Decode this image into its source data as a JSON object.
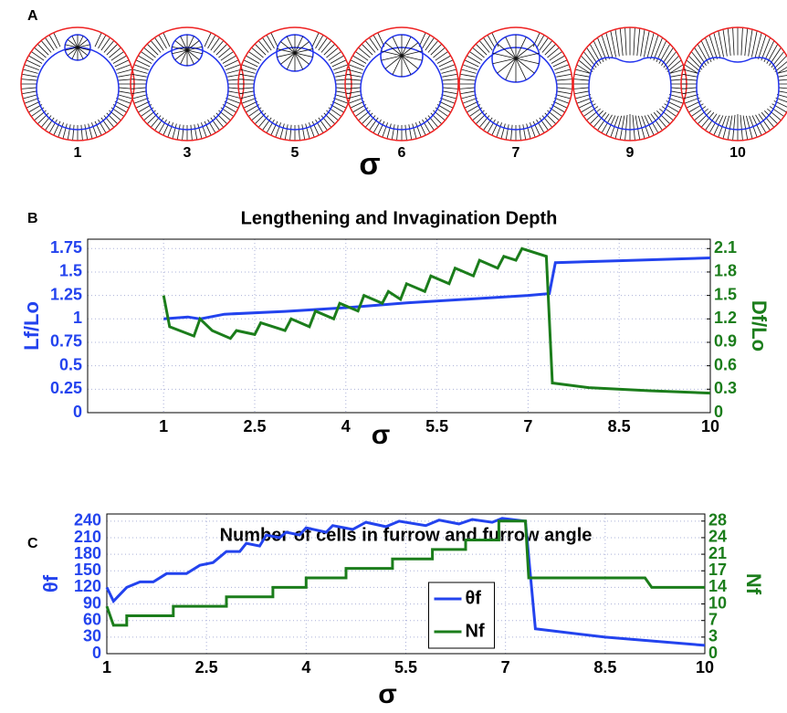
{
  "figure_a": {
    "panel_label": "A",
    "sigma_labels": [
      "1",
      "3",
      "5",
      "6",
      "7",
      "9",
      "10"
    ],
    "xlabel": "σ"
  },
  "chart_data": [
    {
      "type": "line",
      "panel_label": "B",
      "title": "Lengthening and Invagination Depth",
      "xlabel": "σ",
      "ylabel": "Lf/Lo",
      "y2label": "Df/Lo",
      "xlim": [
        -0.25,
        10
      ],
      "xticks": [
        1,
        2.5,
        4,
        5.5,
        7,
        8.5,
        10
      ],
      "ylim": [
        0,
        1.85
      ],
      "yticks": [
        0,
        0.25,
        0.5,
        0.75,
        1,
        1.25,
        1.5,
        1.75
      ],
      "y2lim": [
        0,
        2.22
      ],
      "y2ticks": [
        0,
        0.3,
        0.6,
        0.9,
        1.2,
        1.5,
        1.8,
        2.1
      ],
      "grid": true,
      "series": [
        {
          "name": "Lf/Lo",
          "color": "#2343ee",
          "x": [
            1,
            1.4,
            1.6,
            2,
            3,
            4,
            5,
            6,
            7,
            7.35,
            7.45,
            8.5,
            10
          ],
          "values": [
            1,
            1.02,
            1,
            1.05,
            1.08,
            1.12,
            1.17,
            1.21,
            1.25,
            1.27,
            1.6,
            1.62,
            1.65
          ]
        },
        {
          "name": "Df/Lo",
          "color": "#1b7d1b",
          "axis": "y2",
          "x": [
            1,
            1.1,
            1.5,
            1.6,
            1.8,
            2.1,
            2.2,
            2.5,
            2.6,
            3,
            3.1,
            3.4,
            3.5,
            3.8,
            3.9,
            4.2,
            4.3,
            4.6,
            4.7,
            4.9,
            5,
            5.3,
            5.4,
            5.7,
            5.8,
            6.1,
            6.2,
            6.5,
            6.6,
            6.8,
            6.9,
            7.3,
            7.4,
            8,
            9,
            10
          ],
          "values": [
            1.5,
            1.1,
            0.98,
            1.2,
            1.05,
            0.95,
            1.05,
            1,
            1.15,
            1.05,
            1.2,
            1.1,
            1.3,
            1.2,
            1.4,
            1.3,
            1.5,
            1.4,
            1.55,
            1.45,
            1.65,
            1.55,
            1.75,
            1.65,
            1.85,
            1.75,
            1.95,
            1.85,
            2,
            1.95,
            2.1,
            2,
            0.38,
            0.32,
            0.28,
            0.25
          ]
        }
      ]
    },
    {
      "type": "line",
      "panel_label": "C",
      "title": "Number of cells in furrow and furrow angle",
      "xlabel": "σ",
      "ylabel": "θf",
      "y2label": "Nf",
      "xlim": [
        1,
        10
      ],
      "xticks": [
        1,
        2.5,
        4,
        5.5,
        7,
        8.5,
        10
      ],
      "ylim": [
        0,
        253
      ],
      "yticks": [
        0,
        30,
        60,
        90,
        120,
        150,
        180,
        210,
        240
      ],
      "y2lim": [
        0,
        29.5
      ],
      "y2ticks": [
        0,
        {
          "value": 3.5,
          "label": "3"
        },
        7,
        {
          "value": 10.5,
          "label": "10"
        },
        14,
        {
          "value": 17.5,
          "label": "17"
        },
        21,
        {
          "value": 24.5,
          "label": "24"
        },
        28
      ],
      "grid": true,
      "legend": "center",
      "series": [
        {
          "name": "θf",
          "color": "#2343ee",
          "x": [
            1,
            1.1,
            1.3,
            1.5,
            1.7,
            1.9,
            2.2,
            2.4,
            2.6,
            2.8,
            3,
            3.1,
            3.3,
            3.4,
            3.6,
            3.7,
            3.9,
            4,
            4.3,
            4.4,
            4.7,
            4.9,
            5.2,
            5.4,
            5.8,
            6,
            6.3,
            6.5,
            6.8,
            6.95,
            7.3,
            7.45,
            8.5,
            10
          ],
          "values": [
            120,
            95,
            120,
            130,
            130,
            145,
            145,
            160,
            165,
            185,
            185,
            200,
            195,
            215,
            210,
            220,
            215,
            228,
            220,
            232,
            225,
            238,
            230,
            240,
            232,
            242,
            235,
            243,
            238,
            245,
            240,
            45,
            30,
            15
          ]
        },
        {
          "name": "Nf",
          "color": "#1b7d1b",
          "axis": "y2",
          "x": [
            1,
            1.1,
            1.3,
            1.3,
            2,
            2,
            2.8,
            2.8,
            3.5,
            3.5,
            4,
            4,
            4.6,
            4.6,
            5.3,
            5.3,
            5.9,
            5.9,
            6.4,
            6.4,
            6.9,
            6.9,
            7.3,
            7.35,
            9.1,
            9.2,
            10
          ],
          "values": [
            10,
            6,
            6,
            8,
            8,
            10,
            10,
            12,
            12,
            14,
            14,
            16,
            16,
            18,
            18,
            20,
            20,
            22,
            22,
            24,
            24,
            28,
            28,
            16,
            16,
            14,
            14
          ]
        }
      ]
    }
  ]
}
